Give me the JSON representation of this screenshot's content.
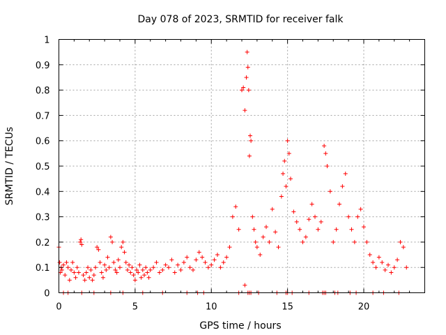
{
  "chart_data": {
    "type": "scatter",
    "title": "Day 078 of 2023, SRMTID for receiver falk",
    "xlabel": "GPS time / hours",
    "ylabel": "SRMTID / TECUs",
    "xlim": [
      0,
      24
    ],
    "ylim": [
      0,
      1
    ],
    "xticks": [
      0,
      5,
      10,
      15,
      20
    ],
    "xtick_labels": [
      "0",
      "5",
      "10",
      "15",
      "20"
    ],
    "yticks": [
      0,
      0.1,
      0.2,
      0.3,
      0.4,
      0.5,
      0.6,
      0.7,
      0.8,
      0.9,
      1
    ],
    "ytick_labels": [
      "0",
      "0.1",
      "0.2",
      "0.3",
      "0.4",
      "0.5",
      "0.6",
      "0.7",
      "0.8",
      "0.9",
      "1"
    ],
    "grid": true,
    "marker": "plus",
    "marker_color": "#ff0000",
    "series": [
      {
        "name": "SRMTID",
        "x": [
          0.0,
          0.05,
          0.1,
          0.15,
          0.2,
          0.3,
          0.4,
          0.5,
          0.6,
          0.7,
          0.8,
          0.9,
          1.0,
          1.1,
          1.2,
          1.3,
          1.4,
          1.45,
          1.5,
          1.6,
          1.7,
          1.8,
          1.9,
          2.0,
          2.1,
          2.2,
          2.3,
          2.4,
          2.5,
          2.6,
          2.7,
          2.8,
          2.9,
          3.0,
          3.1,
          3.2,
          3.3,
          3.4,
          3.5,
          3.6,
          3.7,
          3.8,
          3.9,
          4.0,
          4.1,
          4.2,
          4.3,
          4.4,
          4.5,
          4.6,
          4.7,
          4.8,
          4.9,
          5.0,
          5.1,
          5.2,
          5.3,
          5.4,
          5.5,
          5.6,
          5.7,
          5.8,
          5.9,
          6.0,
          6.2,
          6.4,
          6.6,
          6.8,
          7.0,
          7.2,
          7.4,
          7.6,
          7.8,
          8.0,
          8.2,
          8.4,
          8.6,
          8.8,
          9.0,
          9.2,
          9.4,
          9.6,
          9.8,
          10.0,
          10.2,
          10.4,
          10.6,
          10.8,
          11.0,
          11.2,
          11.4,
          11.6,
          11.8,
          12.0,
          12.1,
          12.2,
          12.3,
          12.35,
          12.4,
          12.45,
          12.5,
          12.55,
          12.6,
          12.7,
          12.8,
          12.9,
          13.0,
          13.2,
          13.4,
          13.6,
          13.8,
          14.0,
          14.2,
          14.4,
          14.6,
          14.7,
          14.8,
          14.9,
          15.0,
          15.1,
          15.2,
          15.4,
          15.6,
          15.8,
          16.0,
          16.2,
          16.4,
          16.6,
          16.8,
          17.0,
          17.2,
          17.4,
          17.5,
          17.6,
          17.8,
          18.0,
          18.2,
          18.4,
          18.6,
          18.8,
          19.0,
          19.2,
          19.4,
          19.6,
          19.8,
          20.0,
          20.2,
          20.4,
          20.6,
          20.8,
          21.0,
          21.2,
          21.4,
          21.6,
          21.8,
          22.0,
          22.2,
          22.4,
          22.6,
          22.8,
          0.3,
          0.6,
          1.5,
          2.3,
          3.4,
          4.2,
          5.5,
          6.8,
          8.4,
          9.1,
          9.5,
          11.8,
          12.2,
          12.4,
          12.5,
          12.6,
          13.1,
          14.3,
          14.9,
          15.0,
          15.3,
          16.4,
          17.3,
          17.4,
          17.5,
          18.1,
          18.3,
          19.1,
          19.5,
          20.6,
          21.3,
          22.3
        ],
        "y": [
          0.18,
          0.12,
          0.08,
          0.1,
          0.09,
          0.11,
          0.07,
          0.12,
          0.1,
          0.05,
          0.09,
          0.12,
          0.08,
          0.06,
          0.1,
          0.08,
          0.2,
          0.21,
          0.19,
          0.07,
          0.05,
          0.08,
          0.1,
          0.06,
          0.09,
          0.05,
          0.07,
          0.1,
          0.18,
          0.17,
          0.12,
          0.08,
          0.06,
          0.11,
          0.09,
          0.14,
          0.1,
          0.22,
          0.2,
          0.12,
          0.09,
          0.08,
          0.13,
          0.1,
          0.18,
          0.2,
          0.16,
          0.12,
          0.09,
          0.11,
          0.08,
          0.1,
          0.07,
          0.05,
          0.09,
          0.08,
          0.11,
          0.06,
          0.09,
          0.07,
          0.1,
          0.08,
          0.06,
          0.09,
          0.1,
          0.12,
          0.08,
          0.09,
          0.11,
          0.1,
          0.13,
          0.08,
          0.11,
          0.09,
          0.12,
          0.14,
          0.1,
          0.09,
          0.13,
          0.16,
          0.14,
          0.12,
          0.1,
          0.11,
          0.13,
          0.15,
          0.1,
          0.12,
          0.14,
          0.18,
          0.3,
          0.34,
          0.25,
          0.8,
          0.81,
          0.72,
          0.85,
          0.95,
          0.89,
          0.8,
          0.54,
          0.62,
          0.6,
          0.3,
          0.25,
          0.2,
          0.18,
          0.15,
          0.22,
          0.26,
          0.2,
          0.33,
          0.24,
          0.18,
          0.38,
          0.47,
          0.52,
          0.42,
          0.6,
          0.55,
          0.45,
          0.32,
          0.28,
          0.25,
          0.2,
          0.22,
          0.29,
          0.35,
          0.3,
          0.25,
          0.28,
          0.58,
          0.55,
          0.5,
          0.4,
          0.2,
          0.25,
          0.35,
          0.42,
          0.47,
          0.3,
          0.25,
          0.2,
          0.3,
          0.33,
          0.26,
          0.2,
          0.15,
          0.12,
          0.1,
          0.14,
          0.12,
          0.09,
          0.11,
          0.08,
          0.1,
          0.13,
          0.2,
          0.18,
          0.1,
          0.0,
          0.0,
          0.0,
          0.0,
          0.0,
          0.0,
          0.0,
          0.0,
          0.0,
          0.0,
          0.0,
          0.0,
          0.03,
          0.0,
          0.0,
          0.0,
          0.0,
          0.0,
          0.0,
          0.0,
          0.0,
          0.0,
          0.0,
          0.0,
          0.0,
          0.0,
          0.0,
          0.0,
          0.0,
          0.0,
          0.0,
          0.0
        ]
      }
    ]
  }
}
